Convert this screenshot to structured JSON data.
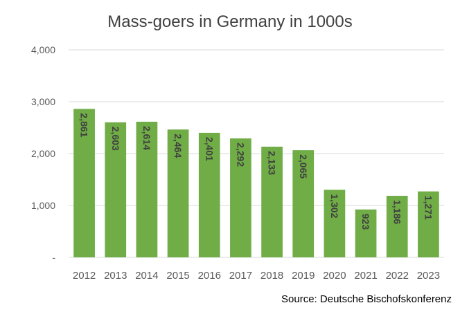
{
  "chart_data": {
    "type": "bar",
    "title": "Mass-goers in Germany in 1000s",
    "source": "Source: Deutsche Bischofskonferenz",
    "categories": [
      "2012",
      "2013",
      "2014",
      "2015",
      "2016",
      "2017",
      "2018",
      "2019",
      "2020",
      "2021",
      "2022",
      "2023"
    ],
    "values": [
      2861,
      2603,
      2614,
      2464,
      2401,
      2292,
      2133,
      2065,
      1302,
      923,
      1186,
      1271
    ],
    "data_labels": [
      "2,861",
      "2,603",
      "2,614",
      "2,464",
      "2,401",
      "2,292",
      "2,133",
      "2,065",
      "1,302",
      "923",
      "1,186",
      "1,271"
    ],
    "y_ticks": [
      0,
      1000,
      2000,
      3000,
      4000
    ],
    "y_tick_labels": [
      "-",
      "1,000",
      "2,000",
      "3,000",
      "4,000"
    ],
    "ylim": [
      0,
      4000
    ],
    "xlabel": "",
    "ylabel": "",
    "grid": true,
    "legend": "none",
    "bar_color": "#70AD47",
    "grid_color": "#D9D9D9"
  }
}
